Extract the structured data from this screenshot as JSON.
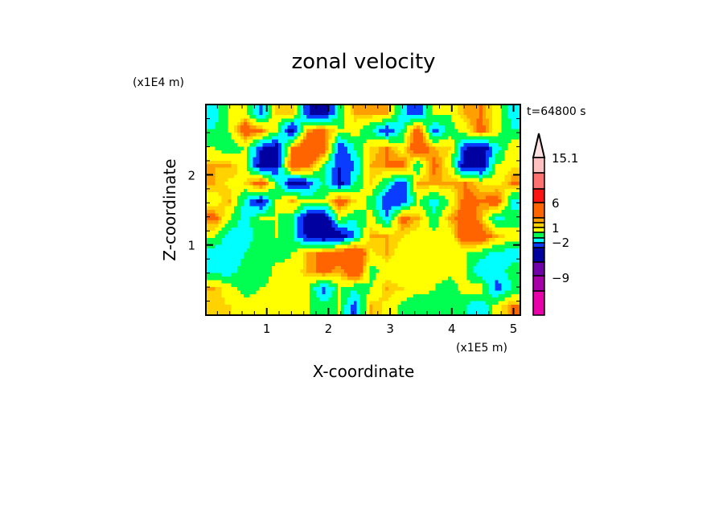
{
  "chart_data": {
    "type": "heatmap",
    "title": "zonal velocity",
    "xlabel": "X-coordinate",
    "ylabel": "Z-coordinate",
    "x_unit": "(x1E5 m)",
    "y_unit": "(x1E4 m)",
    "time_label": "t=64800 s",
    "xlim": [
      0,
      5.1
    ],
    "ylim": [
      0,
      3.0
    ],
    "x_ticks": [
      1,
      2,
      3,
      4,
      5
    ],
    "x_tick_labels": [
      "1",
      "2",
      "3",
      "4",
      "5"
    ],
    "y_ticks": [
      1,
      2
    ],
    "y_tick_labels": [
      "1",
      "2"
    ],
    "grid_note": "rows ordered top (z high) to bottom (z low); 20 columns across x",
    "values": [
      [
        -1.5,
        0.3,
        0.5,
        -2.5,
        1,
        1,
        -3,
        -4,
        -1,
        1.5,
        1.5,
        1.5,
        -1.5,
        -3,
        0.5,
        0,
        1.7,
        2,
        0.5,
        -1.5
      ],
      [
        -1,
        0,
        3,
        2,
        0,
        -4,
        1.7,
        2.5,
        0,
        0.5,
        -1,
        -3,
        -1,
        3,
        -2.5,
        -0.5,
        0.5,
        2.5,
        0.5,
        -1
      ],
      [
        0,
        -0.8,
        0,
        -3,
        -4,
        2,
        3.5,
        3,
        -3,
        -1,
        1,
        2,
        0.5,
        3.5,
        1.5,
        1,
        -3,
        -4,
        -1.5,
        0.8
      ],
      [
        1.5,
        1.5,
        0.5,
        -4,
        -3.5,
        3,
        2.5,
        -0.5,
        -3,
        -2,
        1.5,
        2,
        2.5,
        -1,
        2.5,
        0.5,
        -4,
        -4,
        0,
        0.8
      ],
      [
        1.5,
        0.8,
        1,
        3,
        -0.5,
        -4,
        -3,
        -0.5,
        -3.5,
        -1,
        1,
        -1,
        -3,
        1.5,
        1.5,
        1.5,
        2,
        1,
        0.5,
        2
      ],
      [
        0.5,
        1.5,
        -1.5,
        -3.5,
        0,
        1.5,
        0,
        0,
        3,
        1,
        -0.5,
        -3,
        -3,
        0,
        -1.5,
        0,
        2.5,
        2,
        3,
        -1.5
      ],
      [
        2.5,
        0,
        -1.5,
        0,
        0,
        -1,
        -4,
        -4.5,
        0,
        -1,
        0.5,
        -2,
        2.5,
        1.5,
        -0.8,
        1.5,
        3,
        1.5,
        -1.5,
        -0.5
      ],
      [
        0,
        -1.5,
        -1.5,
        -0.5,
        0,
        -1,
        -3.5,
        -4.5,
        -4,
        -2,
        1.5,
        1.5,
        1,
        0.5,
        0.5,
        0.5,
        3,
        3,
        1.5,
        0.5
      ],
      [
        -1.5,
        -1.5,
        -1,
        -0.5,
        -0.5,
        0,
        1.5,
        2.5,
        3,
        4,
        0.8,
        1.5,
        0.5,
        0.3,
        0.3,
        0.3,
        0,
        -0.5,
        -1.5,
        -1.5
      ],
      [
        -1.5,
        -1.5,
        -0.5,
        -1,
        0.5,
        0.3,
        1.5,
        2.5,
        1.5,
        4,
        -0.5,
        0.5,
        0.5,
        0.5,
        0.3,
        0.3,
        0,
        -2,
        -1.5,
        -0.5
      ],
      [
        1.5,
        0.5,
        -0.5,
        0,
        0.5,
        0.5,
        0,
        -2.5,
        0,
        -1,
        0,
        1.5,
        1,
        0.5,
        0,
        -0.5,
        0.5,
        0.5,
        -2.5,
        -1
      ],
      [
        1.2,
        1,
        0.5,
        0.5,
        0.3,
        0.5,
        0,
        -0.5,
        0,
        -2.5,
        1.5,
        0.8,
        -0.5,
        -1,
        -0.5,
        -0.5,
        -1,
        -2,
        0.5,
        2
      ]
    ],
    "colorbar": {
      "labels": [
        "15.1",
        "6",
        "1",
        "−2",
        "−9"
      ],
      "max": 15.1,
      "levels": [
        {
          "min": 12,
          "max": 15.1,
          "color": "#ffc0c0"
        },
        {
          "min": 9,
          "max": 12,
          "color": "#ff7070"
        },
        {
          "min": 6,
          "max": 9,
          "color": "#ff1414"
        },
        {
          "min": 2,
          "max": 6,
          "color": "#ff6400"
        },
        {
          "min": 1.5,
          "max": 2,
          "color": "#ffa000"
        },
        {
          "min": 1,
          "max": 1.5,
          "color": "#ffd200"
        },
        {
          "min": 0,
          "max": 1,
          "color": "#ffff00"
        },
        {
          "min": -1,
          "max": 0,
          "color": "#00ff50"
        },
        {
          "min": -2,
          "max": -1,
          "color": "#00ffff"
        },
        {
          "min": -3,
          "max": -2,
          "color": "#0a3cff"
        },
        {
          "min": -6,
          "max": -3,
          "color": "#0000a0"
        },
        {
          "min": -9,
          "max": -6,
          "color": "#7000a8"
        },
        {
          "min": -12,
          "max": -9,
          "color": "#a800a8"
        },
        {
          "min": -15,
          "max": -12,
          "color": "#e800a8"
        }
      ],
      "overflow_color": "#ffe0e0"
    }
  }
}
